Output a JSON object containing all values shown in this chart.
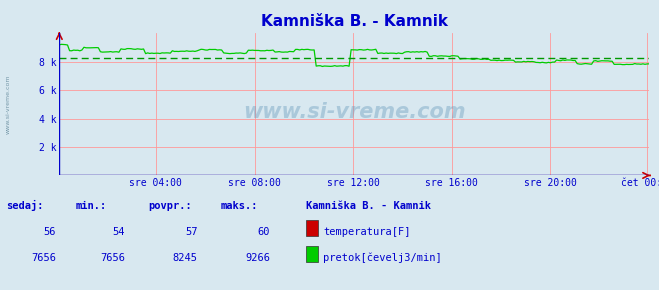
{
  "title": "Kamniška B. - Kamnik",
  "title_color": "#0000cd",
  "bg_color": "#d8e8f0",
  "plot_bg_color": "#d8e8f0",
  "x_labels": [
    "sre 04:00",
    "sre 08:00",
    "sre 12:00",
    "sre 16:00",
    "sre 20:00",
    "čet 00:00"
  ],
  "x_ticks_frac": [
    0.166,
    0.333,
    0.5,
    0.666,
    0.833,
    0.999
  ],
  "n_points": 288,
  "ylim": [
    0,
    10000
  ],
  "ytick_vals": [
    2000,
    4000,
    6000,
    8000
  ],
  "ytick_labels": [
    "2 k",
    "4 k",
    "6 k",
    "8 k"
  ],
  "grid_color": "#ff9999",
  "flow_color": "#00cc00",
  "flow_avg": 8245,
  "flow_avg_color": "#009900",
  "temp_color": "#cc0000",
  "temp_value": 56,
  "temp_min": 54,
  "temp_avg": 57,
  "temp_max": 60,
  "flow_value": 7656,
  "flow_min": 7656,
  "flow_avg_val": 8245,
  "flow_max": 9266,
  "watermark": "www.si-vreme.com",
  "sidebar_text": "www.si-vreme.com",
  "legend_title": "Kamniška B. - Kamnik",
  "legend_items": [
    "temperatura[F]",
    "pretok[čevelj3/min]"
  ],
  "legend_colors": [
    "#cc0000",
    "#00cc00"
  ],
  "stats_headers": [
    "sedaj:",
    "min.:",
    "povpr.:",
    "maks.:"
  ],
  "stats_color": "#0000cd",
  "axis_color": "#0000cc",
  "arrow_color": "#cc0000"
}
